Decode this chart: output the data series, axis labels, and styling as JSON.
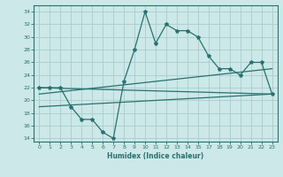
{
  "xlabel": "Humidex (Indice chaleur)",
  "bg_color": "#cce8e8",
  "grid_color": "#aacccc",
  "line_color": "#2a7070",
  "xlim": [
    -0.5,
    23.5
  ],
  "ylim": [
    13.5,
    35
  ],
  "xticks": [
    0,
    1,
    2,
    3,
    4,
    5,
    6,
    7,
    8,
    9,
    10,
    11,
    12,
    13,
    14,
    15,
    17,
    18,
    19,
    20,
    21,
    22,
    23
  ],
  "yticks": [
    14,
    16,
    18,
    20,
    22,
    24,
    26,
    28,
    30,
    32,
    34
  ],
  "line1_x": [
    0,
    1,
    2,
    3,
    4,
    5,
    6,
    7,
    8,
    9,
    10,
    11,
    12,
    13,
    14,
    15,
    17,
    18,
    19,
    20,
    21,
    22,
    23
  ],
  "line1_y": [
    22,
    22,
    22,
    19,
    17,
    17,
    15,
    14,
    23,
    28,
    34,
    29,
    32,
    31,
    31,
    30,
    27,
    25,
    25,
    24,
    26,
    26,
    21
  ],
  "line2_x": [
    0,
    23
  ],
  "line2_y": [
    22,
    21
  ],
  "line3_x": [
    0,
    23
  ],
  "line3_y": [
    21,
    25
  ],
  "line4_x": [
    0,
    23
  ],
  "line4_y": [
    19,
    21
  ]
}
